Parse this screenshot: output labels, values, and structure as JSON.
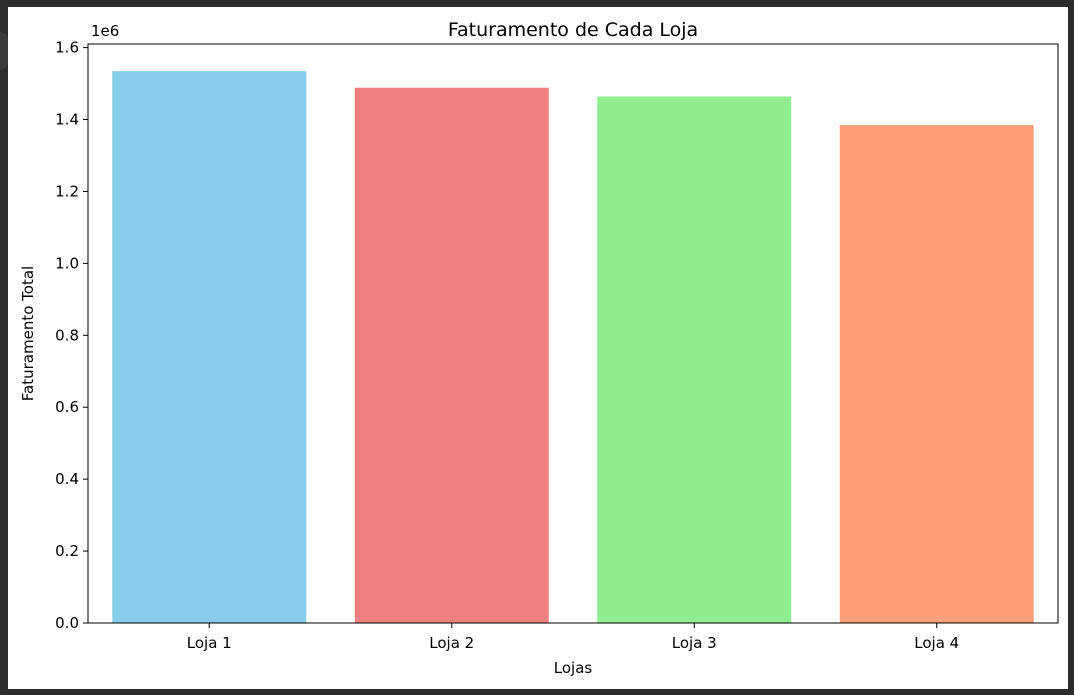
{
  "chart_data": {
    "type": "bar",
    "title": "Faturamento de Cada Loja",
    "xlabel": "Lojas",
    "ylabel": "Faturamento Total",
    "y_offset_label": "1e6",
    "categories": [
      "Loja 1",
      "Loja 2",
      "Loja 3",
      "Loja 4"
    ],
    "values": [
      1534500,
      1488500,
      1464000,
      1384500
    ],
    "colors": [
      "#87ceeb",
      "#f08080",
      "#90ee90",
      "#ffa07a"
    ],
    "ylim": [
      0,
      1610000
    ],
    "yticks": [
      0,
      200000,
      400000,
      600000,
      800000,
      1000000,
      1200000,
      1400000,
      1600000
    ],
    "ytick_labels": [
      "0.0",
      "0.2",
      "0.4",
      "0.6",
      "0.8",
      "1.0",
      "1.2",
      "1.4",
      "1.6"
    ],
    "grid": false,
    "legend": "none"
  }
}
